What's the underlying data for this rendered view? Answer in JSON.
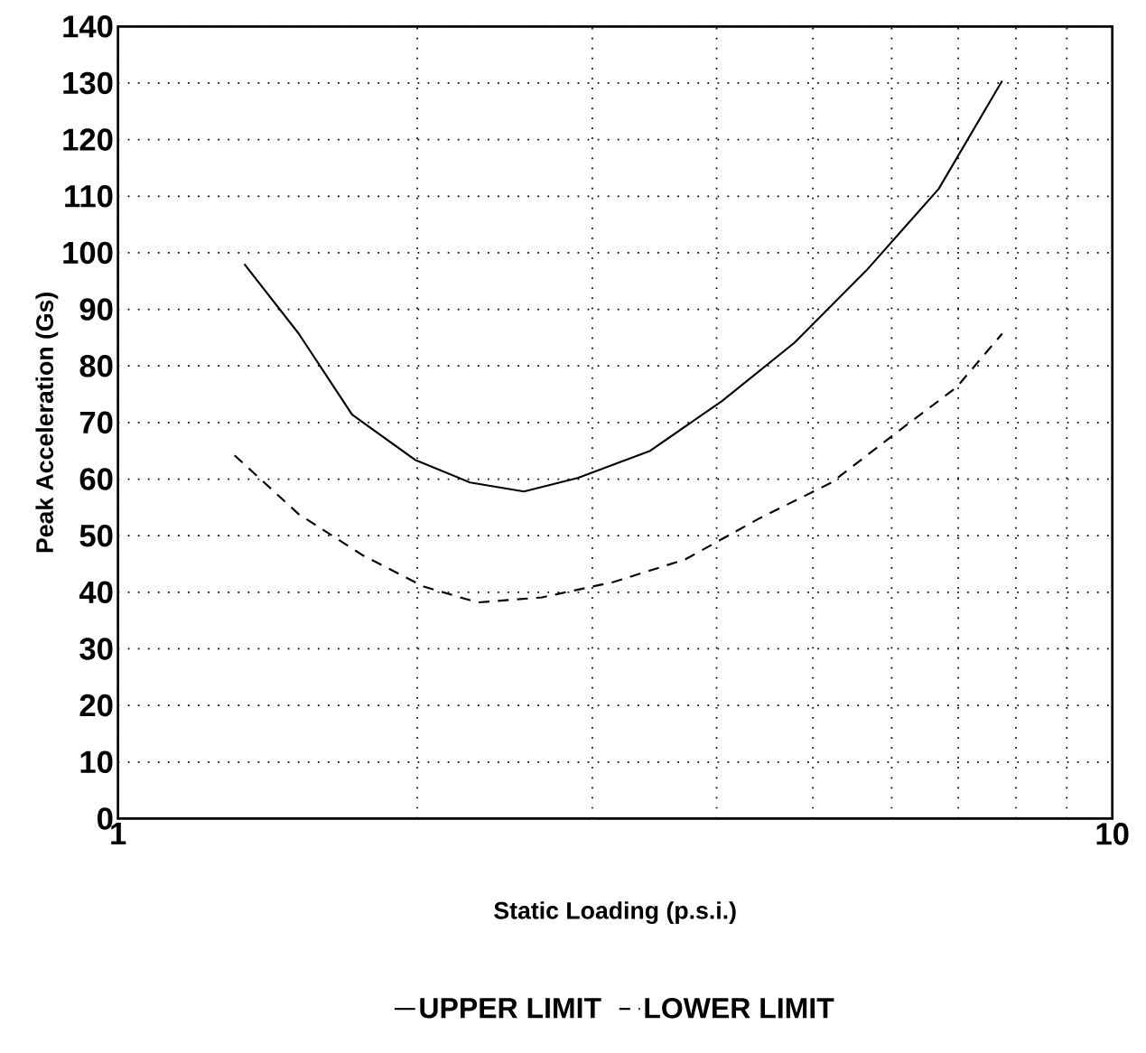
{
  "chart_data": {
    "type": "line",
    "xlabel": "Static Loading (p.s.i.)",
    "ylabel": "Peak Acceleration (Gs)",
    "log": "x",
    "grid": true,
    "legend": "bottom",
    "marker": "none",
    "xlim": [
      1,
      10
    ],
    "ylim": [
      0,
      140
    ],
    "xticks": [
      1,
      {
        "value": 2,
        "label": null
      },
      {
        "value": 3,
        "label": null
      },
      {
        "value": 4,
        "label": null
      },
      {
        "value": 5,
        "label": null
      },
      {
        "value": 6,
        "label": null
      },
      {
        "value": 7,
        "label": null
      },
      {
        "value": 8,
        "label": null
      },
      {
        "value": 9,
        "label": null
      },
      10
    ],
    "yticks": [
      0,
      10,
      20,
      30,
      40,
      50,
      60,
      70,
      80,
      90,
      100,
      110,
      120,
      130,
      140
    ],
    "series": [
      {
        "name": "UPPER LIMIT",
        "color": "#000000",
        "line_style": "solid",
        "x": [
          1.34,
          1.52,
          1.72,
          1.99,
          2.26,
          2.56,
          2.9,
          3.43,
          4.05,
          4.79,
          5.66,
          6.69,
          7.75
        ],
        "values": [
          98,
          85.7,
          71.4,
          63.4,
          59.4,
          57.8,
          60.2,
          65,
          73.8,
          84.1,
          96.9,
          111.3,
          130.4
        ]
      },
      {
        "name": "LOWER LIMIT",
        "color": "#000000",
        "line_style": "dashed",
        "x": [
          1.31,
          1.52,
          1.76,
          2.03,
          2.3,
          2.67,
          3.15,
          3.72,
          4.41,
          5.22,
          6.15,
          6.97,
          7.75
        ],
        "values": [
          64.2,
          53.8,
          46.6,
          41,
          38.2,
          39.1,
          41.8,
          45.8,
          53,
          59.4,
          69,
          76.2,
          85.7
        ]
      }
    ]
  }
}
